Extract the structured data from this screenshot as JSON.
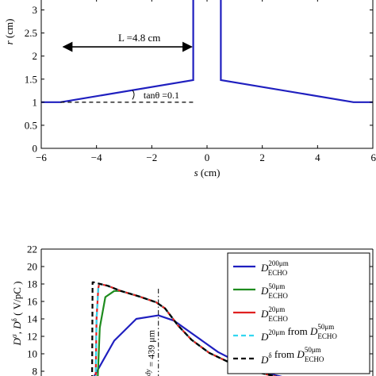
{
  "chart_data": [
    {
      "type": "line",
      "xlabel_var": "s",
      "xlabel_unit": "(cm)",
      "ylabel_var": "r",
      "ylabel_unit": "(cm)",
      "xlim": [
        -6,
        6
      ],
      "ylim": [
        0,
        3.25
      ],
      "xticks": [
        -6,
        -4,
        -2,
        0,
        2,
        4,
        6
      ],
      "xtick_labels": [
        "−6",
        "−4",
        "−2",
        "0",
        "2",
        "4",
        "6"
      ],
      "yticks": [
        0,
        0.5,
        1,
        1.5,
        2,
        2.5,
        3
      ],
      "ytick_labels": [
        "0",
        "0.5",
        "1",
        "1.5",
        "2",
        "2.5",
        "3"
      ],
      "grid": false,
      "color": "#1f1fbf",
      "series": [
        {
          "points": [
            [
              -6,
              1
            ],
            [
              -5.3,
              1
            ],
            [
              -0.5,
              1.48
            ],
            [
              -0.5,
              3.3
            ]
          ]
        },
        {
          "points": [
            [
              0.5,
              3.3
            ],
            [
              0.5,
              1.48
            ],
            [
              5.3,
              1
            ],
            [
              6,
              1
            ]
          ]
        }
      ],
      "annotations": {
        "length_label": "L =4.8 cm",
        "length_arrow": {
          "from_x": -5.2,
          "to_x": -0.5,
          "y": 2.2
        },
        "angle_label": "tanθ =0.1",
        "dashed_baseline": {
          "from_x": -5.3,
          "to_x": -0.5,
          "y": 1
        }
      }
    },
    {
      "type": "line",
      "ylim": [
        7,
        22
      ],
      "yticks": [
        8,
        10,
        12,
        14,
        16,
        18,
        20,
        22
      ],
      "ytick_labels": [
        "8",
        "10",
        "12",
        "14",
        "16",
        "18",
        "20",
        "22"
      ],
      "ylabel_parts": [
        "D",
        "σ",
        ", ",
        "D",
        "δ",
        " ( V/pC )"
      ],
      "xlim": [
        0,
        1500
      ],
      "grid": false,
      "vline": {
        "x": 530,
        "label": "= 439 μm",
        "label_prefix": "dy"
      },
      "series": [
        {
          "label": {
            "base": "D",
            "sup": "200μm",
            "sub": "ECHO"
          },
          "color": "#1f1fbf",
          "dash": "solid",
          "x": [
            230,
            330,
            430,
            530,
            600,
            700,
            800,
            900,
            1000,
            1100,
            1200
          ],
          "y": [
            7,
            11.5,
            14.0,
            14.4,
            13.8,
            12.0,
            10.2,
            8.9,
            7.9,
            7.3,
            7.0
          ]
        },
        {
          "label": {
            "base": "D",
            "sup": "50μm",
            "sub": "ECHO"
          },
          "color": "#1e8c1e",
          "dash": "solid",
          "x": [
            255,
            265,
            290,
            330,
            360,
            440,
            520,
            560,
            620,
            680,
            760,
            860,
            960,
            1060,
            1160,
            1220
          ],
          "y": [
            7,
            13.0,
            16.5,
            17.2,
            17.2,
            16.6,
            15.9,
            15.2,
            13.2,
            11.6,
            10.1,
            8.9,
            8.0,
            7.4,
            7.0,
            6.9
          ]
        },
        {
          "label": {
            "base": "D",
            "sup": "20μm",
            "sub": "ECHO"
          },
          "color": "#e02020",
          "dash": "solid",
          "x": [
            246,
            250,
            258,
            262,
            300,
            360,
            440,
            520,
            560,
            620,
            680,
            760,
            860,
            960,
            1060,
            1160,
            1220
          ],
          "y": [
            7,
            14.0,
            17.5,
            18.0,
            17.8,
            17.2,
            16.6,
            15.9,
            15.2,
            13.2,
            11.6,
            10.1,
            8.9,
            8.0,
            7.4,
            7.0,
            6.9
          ]
        },
        {
          "label": {
            "base": "D",
            "sup": "20μm",
            "mid": " from ",
            "base2": "D",
            "sup2": "50μm",
            "sub2": "ECHO"
          },
          "color": "#33d6f0",
          "dash": "dashed",
          "x": [
            246,
            250,
            258,
            262,
            300,
            360,
            440,
            520,
            560,
            620,
            680,
            760,
            860,
            960,
            1060,
            1160,
            1220
          ],
          "y": [
            7,
            14.0,
            17.5,
            18.0,
            17.8,
            17.2,
            16.6,
            15.9,
            15.2,
            13.2,
            11.6,
            10.1,
            8.9,
            8.0,
            7.4,
            7.0,
            6.9
          ]
        },
        {
          "label": {
            "base": "D",
            "sup": "δ",
            "mid": " from ",
            "base2": "D",
            "sup2": "50μm",
            "sub2": "ECHO"
          },
          "color": "#000000",
          "dash": "dashed",
          "x": [
            230,
            232,
            236,
            300,
            360,
            440,
            520,
            560,
            620,
            680,
            760,
            860,
            960,
            1060,
            1160,
            1220
          ],
          "y": [
            7,
            18.2,
            18.2,
            17.8,
            17.2,
            16.6,
            15.9,
            15.2,
            13.2,
            11.6,
            10.1,
            8.9,
            8.0,
            7.4,
            7.0,
            6.9
          ]
        }
      ],
      "legend_position": "top-right"
    }
  ]
}
